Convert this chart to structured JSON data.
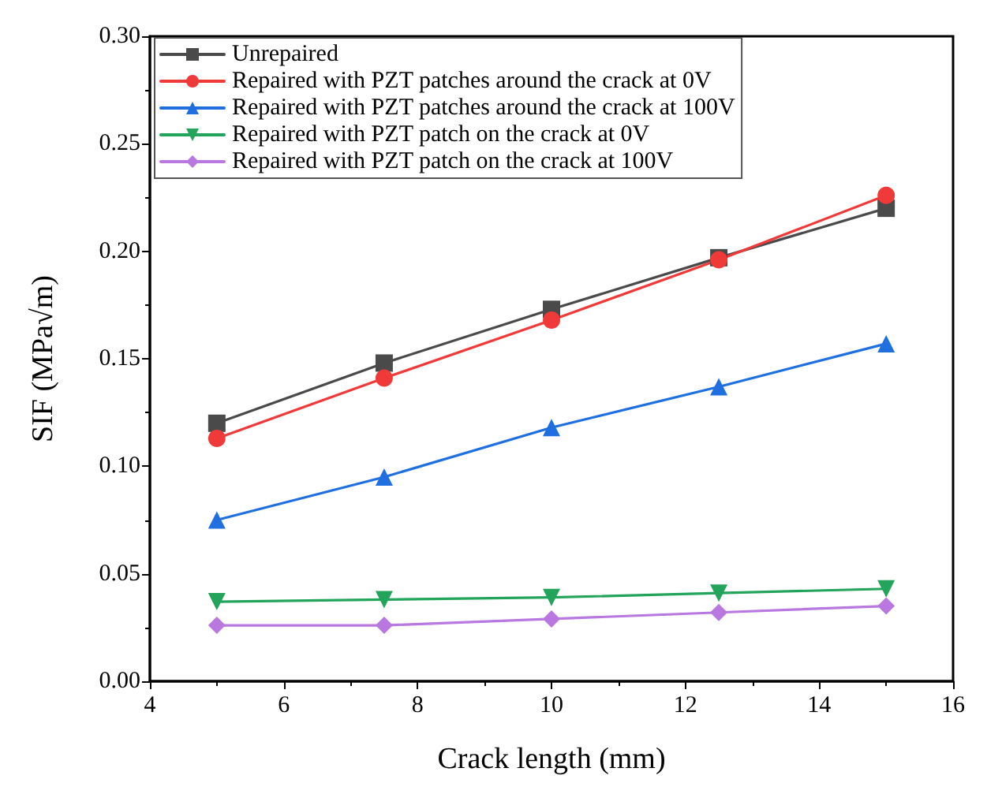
{
  "chart_data": {
    "type": "line",
    "xlabel": "Crack length (mm)",
    "ylabel": "SIF (MPa√m)",
    "x": [
      5,
      7.5,
      10,
      12.5,
      15
    ],
    "series": [
      {
        "name": "Unrepaired",
        "color": "#4a4a4a",
        "marker": "square",
        "values": [
          0.12,
          0.148,
          0.173,
          0.197,
          0.22
        ]
      },
      {
        "name": "Repaired with PZT patches around the crack at 0V",
        "color": "#f03a3a",
        "marker": "circle",
        "values": [
          0.113,
          0.141,
          0.168,
          0.196,
          0.226
        ]
      },
      {
        "name": "Repaired with PZT patches around the crack at 100V",
        "color": "#1f6fe0",
        "marker": "triangle",
        "values": [
          0.075,
          0.095,
          0.118,
          0.137,
          0.157
        ]
      },
      {
        "name": "Repaired with PZT patch on the crack at 0V",
        "color": "#22a45a",
        "marker": "triangle-down",
        "values": [
          0.037,
          0.038,
          0.039,
          0.041,
          0.043
        ]
      },
      {
        "name": "Repaired with PZT patch on the crack at 100V",
        "color": "#b878e0",
        "marker": "diamond",
        "values": [
          0.026,
          0.026,
          0.029,
          0.032,
          0.035
        ]
      }
    ],
    "xlim": [
      4,
      16
    ],
    "xticks": [
      4,
      6,
      8,
      10,
      12,
      14,
      16
    ],
    "ylim": [
      0,
      0.3
    ],
    "yticks": [
      {
        "value": 0,
        "label": "0.00"
      },
      {
        "value": 0.05,
        "label": "0.05"
      },
      {
        "value": 0.1,
        "label": "0.10"
      },
      {
        "value": 0.15,
        "label": "0.15"
      },
      {
        "value": 0.2,
        "label": "0.20"
      },
      {
        "value": 0.25,
        "label": "0.25"
      },
      {
        "value": 0.3,
        "label": "0.30"
      }
    ],
    "grid": false,
    "legend": "top left",
    "line_style": "solid"
  }
}
